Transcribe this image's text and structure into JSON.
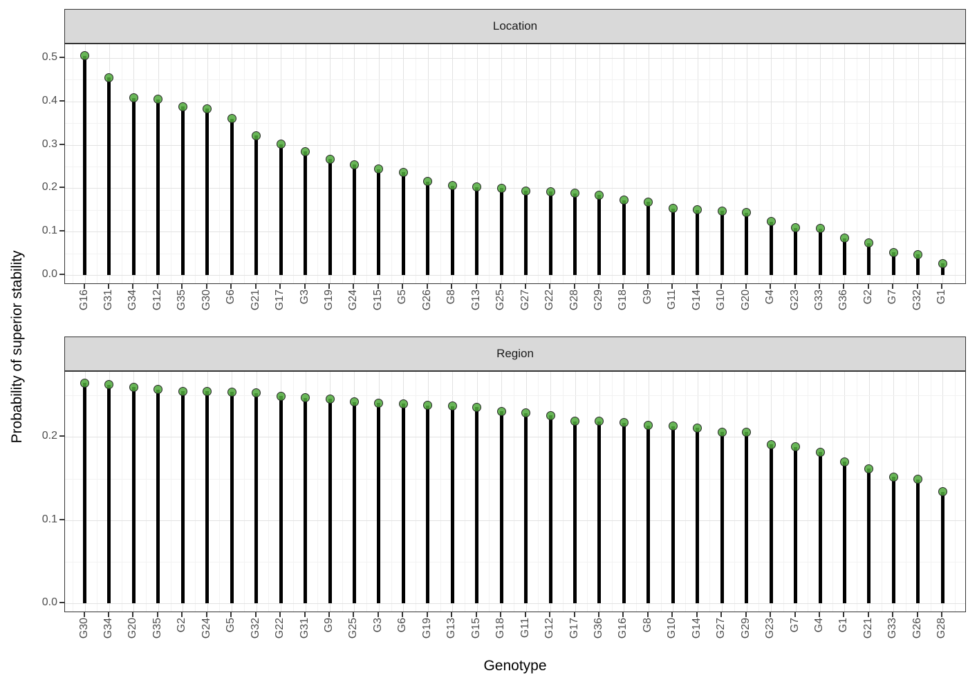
{
  "figure": {
    "y_axis_title": "Probability of superior stability",
    "x_axis_title": "Genotype"
  },
  "style": {
    "dot_fill": "rgba(80,170,60,0.85)",
    "dot_border": "#262626",
    "stem_color": "#000000",
    "strip_background": "#d9d9d9",
    "panel_border": "#333333",
    "grid_major": "#e2e2e2",
    "grid_minor": "#f2f2f2",
    "tick_label_color": "#4d4d4d",
    "axis_title_color": "#000000"
  },
  "chart_data": [
    {
      "type": "bar",
      "variant": "lollipop",
      "facet": "Location",
      "xlabel": "Genotype",
      "ylabel": "Probability of superior stability",
      "categories": [
        "G16",
        "G31",
        "G34",
        "G12",
        "G35",
        "G30",
        "G6",
        "G21",
        "G17",
        "G3",
        "G19",
        "G24",
        "G15",
        "G5",
        "G26",
        "G8",
        "G13",
        "G25",
        "G27",
        "G22",
        "G28",
        "G29",
        "G18",
        "G9",
        "G11",
        "G14",
        "G10",
        "G20",
        "G4",
        "G23",
        "G33",
        "G36",
        "G2",
        "G7",
        "G32",
        "G1"
      ],
      "values": [
        0.505,
        0.455,
        0.408,
        0.405,
        0.388,
        0.383,
        0.36,
        0.321,
        0.301,
        0.285,
        0.267,
        0.254,
        0.244,
        0.237,
        0.215,
        0.206,
        0.203,
        0.2,
        0.194,
        0.192,
        0.188,
        0.184,
        0.172,
        0.168,
        0.153,
        0.15,
        0.148,
        0.144,
        0.123,
        0.109,
        0.107,
        0.085,
        0.074,
        0.052,
        0.047,
        0.027
      ],
      "yticks": [
        0.0,
        0.1,
        0.2,
        0.3,
        0.4,
        0.5
      ],
      "yticks_minor": [
        0.05,
        0.15,
        0.25,
        0.35,
        0.45
      ],
      "ylim": [
        0,
        0.531
      ],
      "grid": true,
      "legend": "none"
    },
    {
      "type": "bar",
      "variant": "lollipop",
      "facet": "Region",
      "xlabel": "Genotype",
      "ylabel": "Probability of superior stability",
      "categories": [
        "G30",
        "G34",
        "G20",
        "G35",
        "G2",
        "G24",
        "G5",
        "G32",
        "G22",
        "G31",
        "G9",
        "G25",
        "G3",
        "G6",
        "G19",
        "G13",
        "G15",
        "G18",
        "G11",
        "G12",
        "G17",
        "G36",
        "G16",
        "G8",
        "G10",
        "G14",
        "G27",
        "G29",
        "G23",
        "G7",
        "G4",
        "G1",
        "G21",
        "G33",
        "G26",
        "G28"
      ],
      "values": [
        0.265,
        0.263,
        0.26,
        0.257,
        0.255,
        0.255,
        0.254,
        0.253,
        0.249,
        0.247,
        0.246,
        0.242,
        0.241,
        0.24,
        0.238,
        0.237,
        0.236,
        0.231,
        0.229,
        0.226,
        0.219,
        0.219,
        0.217,
        0.214,
        0.213,
        0.211,
        0.206,
        0.206,
        0.191,
        0.188,
        0.182,
        0.17,
        0.162,
        0.152,
        0.149,
        0.134
      ],
      "yticks": [
        0.0,
        0.1,
        0.2
      ],
      "yticks_minor": [
        0.05,
        0.15,
        0.25
      ],
      "ylim": [
        0,
        0.279
      ],
      "grid": true,
      "legend": "none"
    }
  ]
}
